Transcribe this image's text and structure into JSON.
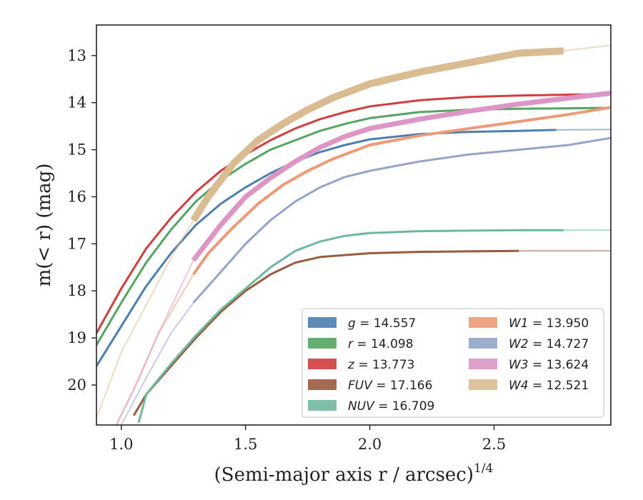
{
  "chart_data": {
    "type": "line",
    "title": "",
    "xlabel": "(Semi-major axis r / arcsec)",
    "xlabel_sup": "1/4",
    "ylabel": "m(< r) (mag)",
    "xlim": [
      0.9,
      2.97
    ],
    "ylim": [
      20.85,
      12.35
    ],
    "y_inverted": true,
    "grid": false,
    "legend_position": "lower-right",
    "x_ticks": [
      1.0,
      1.5,
      2.0,
      2.5
    ],
    "x_tick_labels": [
      "1.0",
      "1.5",
      "2.0",
      "2.5"
    ],
    "y_ticks": [
      13,
      14,
      15,
      16,
      17,
      18,
      19,
      20
    ],
    "y_tick_labels": [
      "13",
      "14",
      "15",
      "16",
      "17",
      "18",
      "19",
      "20"
    ],
    "series": [
      {
        "name": "g = 14.557",
        "band": "g",
        "mag": "14.557",
        "color": "#4c7fb0",
        "x": [
          0.9,
          1.0,
          1.1,
          1.2,
          1.3,
          1.4,
          1.5,
          1.6,
          1.7,
          1.8,
          1.9,
          2.0,
          2.2,
          2.4,
          2.6,
          2.75
        ],
        "y": [
          19.6,
          18.75,
          17.9,
          17.2,
          16.6,
          16.15,
          15.8,
          15.5,
          15.25,
          15.05,
          14.9,
          14.78,
          14.67,
          14.62,
          14.6,
          14.58
        ],
        "ext_x": [
          2.75,
          2.97
        ],
        "ext_y": [
          14.58,
          14.57
        ]
      },
      {
        "name": "r = 14.098",
        "band": "r",
        "mag": "14.098",
        "color": "#55a461",
        "x": [
          0.9,
          1.0,
          1.1,
          1.2,
          1.3,
          1.4,
          1.5,
          1.6,
          1.7,
          1.8,
          1.9,
          2.0,
          2.2,
          2.4,
          2.6,
          2.8,
          2.97
        ],
        "y": [
          19.15,
          18.25,
          17.4,
          16.7,
          16.1,
          15.65,
          15.3,
          15.0,
          14.8,
          14.6,
          14.45,
          14.33,
          14.2,
          14.15,
          14.13,
          14.12,
          14.11
        ],
        "ext_x": [],
        "ext_y": []
      },
      {
        "name": "z = 13.773",
        "band": "z",
        "mag": "13.773",
        "color": "#d03e3e",
        "x": [
          0.9,
          1.0,
          1.1,
          1.2,
          1.3,
          1.4,
          1.5,
          1.6,
          1.7,
          1.8,
          1.9,
          2.0,
          2.2,
          2.4,
          2.6,
          2.8,
          2.97
        ],
        "y": [
          18.9,
          17.95,
          17.1,
          16.45,
          15.9,
          15.45,
          15.1,
          14.8,
          14.55,
          14.35,
          14.2,
          14.08,
          13.95,
          13.88,
          13.85,
          13.83,
          13.82
        ],
        "ext_x": [],
        "ext_y": []
      },
      {
        "name": "FUV = 17.166",
        "band": "FUV",
        "mag": "17.166",
        "color": "#9a5a3c",
        "x": [
          1.05,
          1.1,
          1.2,
          1.3,
          1.4,
          1.5,
          1.6,
          1.7,
          1.8,
          2.0,
          2.2,
          2.4,
          2.6
        ],
        "y": [
          20.65,
          20.2,
          19.6,
          19.0,
          18.45,
          18.0,
          17.65,
          17.4,
          17.28,
          17.2,
          17.17,
          17.16,
          17.15
        ],
        "ext_x": [
          2.6,
          2.97
        ],
        "ext_y": [
          17.15,
          17.15
        ]
      },
      {
        "name": "NUV = 16.709",
        "band": "NUV",
        "mag": "16.709",
        "color": "#6fb89d",
        "x": [
          1.07,
          1.1,
          1.2,
          1.3,
          1.4,
          1.5,
          1.6,
          1.7,
          1.8,
          1.9,
          2.0,
          2.2,
          2.4,
          2.6,
          2.78
        ],
        "y": [
          20.8,
          20.2,
          19.55,
          18.95,
          18.4,
          17.95,
          17.5,
          17.15,
          16.95,
          16.83,
          16.77,
          16.73,
          16.72,
          16.71,
          16.71
        ],
        "ext_x": [
          2.78,
          2.97
        ],
        "ext_y": [
          16.71,
          16.71
        ]
      },
      {
        "name": "W1 = 13.950",
        "band": "W1",
        "mag": "13.950",
        "color": "#ec9a77",
        "x": [
          1.29,
          1.35,
          1.45,
          1.55,
          1.65,
          1.75,
          1.85,
          2.0,
          2.2,
          2.4,
          2.6,
          2.8,
          2.97
        ],
        "y": [
          17.65,
          17.2,
          16.65,
          16.15,
          15.75,
          15.45,
          15.2,
          14.9,
          14.7,
          14.55,
          14.4,
          14.25,
          14.1
        ],
        "ext_x": [
          0.98,
          1.05,
          1.15,
          1.29
        ],
        "ext_y": [
          20.85,
          20.1,
          18.9,
          17.65
        ]
      },
      {
        "name": "W2 = 14.727",
        "band": "W2",
        "mag": "14.727",
        "color": "#94a4c8",
        "x": [
          1.29,
          1.4,
          1.5,
          1.6,
          1.7,
          1.8,
          1.9,
          2.0,
          2.2,
          2.4,
          2.6,
          2.8,
          2.97
        ],
        "y": [
          18.25,
          17.6,
          17.0,
          16.5,
          16.1,
          15.8,
          15.58,
          15.45,
          15.25,
          15.1,
          15.0,
          14.9,
          14.75
        ],
        "ext_x": [
          1.0,
          1.1,
          1.2,
          1.29
        ],
        "ext_y": [
          20.85,
          19.85,
          18.9,
          18.25
        ]
      },
      {
        "name": "W3 = 13.624",
        "band": "W3",
        "mag": "13.624",
        "color": "#dc95c5",
        "x": [
          1.29,
          1.4,
          1.5,
          1.6,
          1.7,
          1.8,
          1.9,
          2.0,
          2.2,
          2.4,
          2.6,
          2.8,
          2.97
        ],
        "y": [
          17.35,
          16.6,
          16.0,
          15.6,
          15.25,
          14.95,
          14.72,
          14.55,
          14.35,
          14.18,
          14.03,
          13.9,
          13.8
        ],
        "ext_x": [
          0.98,
          1.05,
          1.15,
          1.29
        ],
        "ext_y": [
          20.85,
          20.1,
          18.9,
          17.35
        ]
      },
      {
        "name": "W4 = 12.521",
        "band": "W4",
        "mag": "12.521",
        "color": "#d9bc92",
        "x": [
          1.29,
          1.35,
          1.45,
          1.55,
          1.65,
          1.75,
          1.85,
          2.0,
          2.2,
          2.4,
          2.6,
          2.78
        ],
        "y": [
          16.5,
          16.0,
          15.3,
          14.8,
          14.45,
          14.15,
          13.9,
          13.6,
          13.35,
          13.15,
          12.95,
          12.9
        ],
        "ext_x": [
          0.9,
          1.0,
          1.1,
          1.2,
          1.29,
          null,
          2.78,
          2.97
        ],
        "ext_y": [
          20.7,
          19.3,
          18.3,
          17.3,
          16.5,
          null,
          12.9,
          12.78
        ]
      }
    ],
    "legend_columns": [
      [
        "g",
        "r",
        "z",
        "FUV",
        "NUV"
      ],
      [
        "W1",
        "W2",
        "W3",
        "W4"
      ]
    ]
  }
}
